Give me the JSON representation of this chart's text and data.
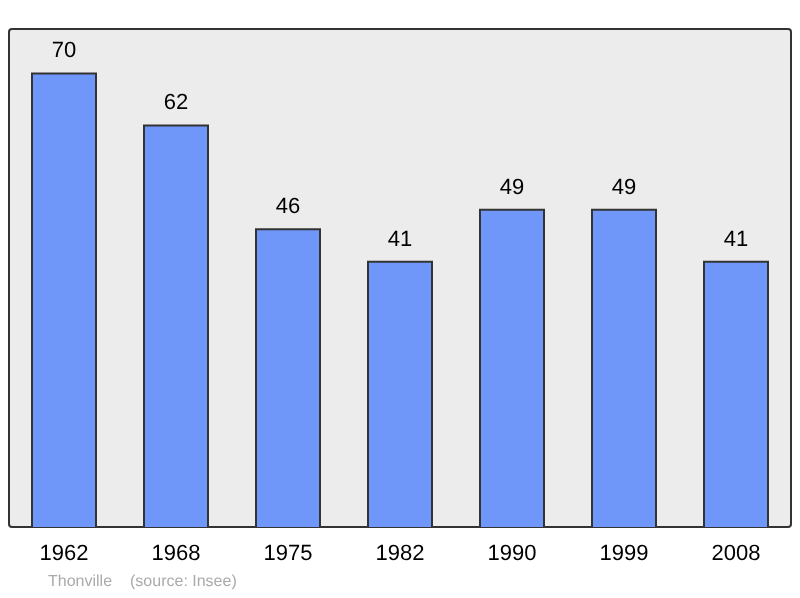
{
  "chart_data": {
    "type": "bar",
    "categories": [
      "1962",
      "1968",
      "1975",
      "1982",
      "1990",
      "1999",
      "2008"
    ],
    "values": [
      70,
      62,
      46,
      41,
      49,
      49,
      41
    ],
    "color": "#6f96f9",
    "data_labels": true,
    "annotations": [
      "Thonville",
      "(source: Insee)"
    ]
  }
}
